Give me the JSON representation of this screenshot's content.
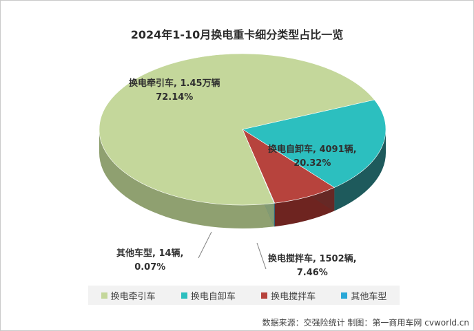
{
  "title": "2024年1-10月换电重卡细分类型占比一览",
  "chart_data": {
    "type": "pie",
    "title": "2024年1-10月换电重卡细分类型占比一览",
    "series": [
      {
        "name": "换电牵引车",
        "value": 72.14,
        "count_label": "换电牵引车, 1.45万辆",
        "pct_label": "72.14%",
        "color": "#c4d79b",
        "side_color": "#8fa070"
      },
      {
        "name": "换电自卸车",
        "value": 20.32,
        "count_label": "换电自卸车, 4091辆,",
        "pct_label": "20.32%",
        "color": "#2cbfbf",
        "side_color": "#1e5a5c"
      },
      {
        "name": "换电搅拌车",
        "value": 7.46,
        "count_label": "换电搅拌车, 1502辆,",
        "pct_label": "7.46%",
        "color": "#b7433d",
        "side_color": "#6e2420"
      },
      {
        "name": "其他车型",
        "value": 0.07,
        "count_label": "其他车型, 14辆,",
        "pct_label": "0.07%",
        "color": "#2aa8d8",
        "side_color": "#1a6f8f"
      }
    ],
    "legend_position": "bottom"
  },
  "legend": [
    {
      "label": "换电牵引车",
      "color": "#c4d79b"
    },
    {
      "label": "换电自卸车",
      "color": "#2cbfbf"
    },
    {
      "label": "换电搅拌车",
      "color": "#b7433d"
    },
    {
      "label": "其他车型",
      "color": "#2aa8d8"
    }
  ],
  "source": "数据来源：交强险统计   制图：第一商用车网 cvworld.cn"
}
